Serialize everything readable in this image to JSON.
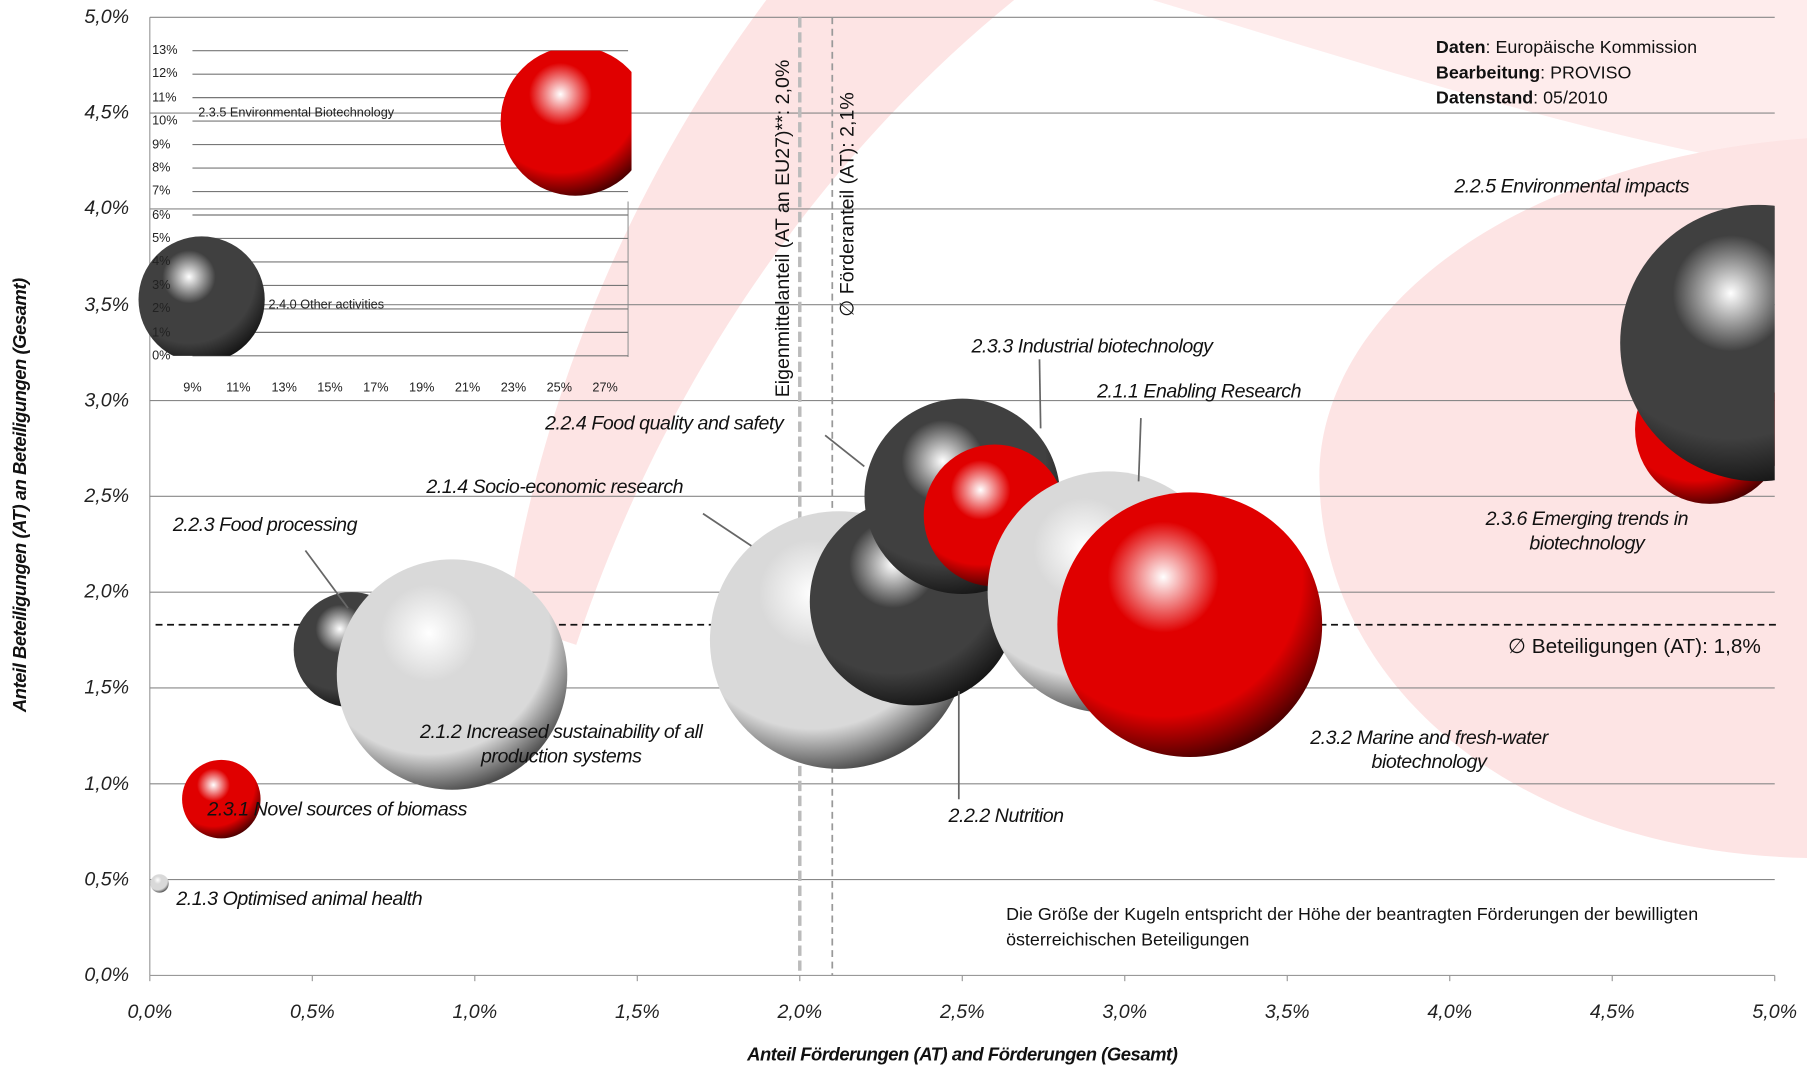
{
  "chart_data": [
    {
      "type": "bubble",
      "x_axis_title": "Anteil Förderungen (AT) and Förderungen (Gesamt)",
      "y_axis_title": "Anteil  Beteiligungen (AT) an Beteiligungen (Gesamt)",
      "xlim": [
        0,
        5
      ],
      "ylim": [
        0,
        5
      ],
      "grid": true,
      "xticks": [
        {
          "value": 0,
          "label": "0,0%"
        },
        {
          "value": 0.5,
          "label": "0,5%"
        },
        {
          "value": 1,
          "label": "1,0%"
        },
        {
          "value": 1.5,
          "label": "1,5%"
        },
        {
          "value": 2,
          "label": "2,0%"
        },
        {
          "value": 2.5,
          "label": "2,5%"
        },
        {
          "value": 3,
          "label": "3,0%"
        },
        {
          "value": 3.5,
          "label": "3,5%"
        },
        {
          "value": 4,
          "label": "4,0%"
        },
        {
          "value": 4.5,
          "label": "4,5%"
        },
        {
          "value": 5,
          "label": "5,0%"
        }
      ],
      "yticks": [
        {
          "value": 0,
          "label": "0,0%"
        },
        {
          "value": 0.5,
          "label": "0,5%"
        },
        {
          "value": 1,
          "label": "1,0%"
        },
        {
          "value": 1.5,
          "label": "1,5%"
        },
        {
          "value": 2,
          "label": "2,0%"
        },
        {
          "value": 2.5,
          "label": "2,5%"
        },
        {
          "value": 3,
          "label": "3,0%"
        },
        {
          "value": 3.5,
          "label": "3,5%"
        },
        {
          "value": 4,
          "label": "4,0%"
        },
        {
          "value": 4.5,
          "label": "4,5%"
        },
        {
          "value": 5,
          "label": "5,0%"
        }
      ],
      "labels": [
        "2.1.3 Optimised animal health",
        "2.3.1 Novel sources of biomass",
        "2.2.3 Food processing",
        "2.1.2 Increased sustainability of all production systems",
        "2.1.4 Socio-economic research",
        "2.2.2 Nutrition",
        "2.2.4 Food quality and safety",
        "2.3.3 Industrial biotechnology",
        "2.1.1 Enabling Research",
        "2.3.2 Marine and fresh-water biotechnology",
        "2.3.6 Emerging trends in biotechnology",
        "2.2.5 Environmental impacts"
      ],
      "x": [
        0.03,
        0.22,
        0.62,
        0.93,
        2.12,
        2.35,
        2.5,
        2.6,
        2.95,
        3.2,
        4.8,
        4.95
      ],
      "values": [
        0.48,
        0.92,
        1.7,
        1.57,
        1.75,
        1.95,
        2.5,
        2.4,
        2.0,
        1.83,
        2.85,
        3.3
      ],
      "sizes": [
        0.64,
        11.6,
        25,
        100,
        125,
        81,
        72,
        38,
        110,
        132,
        42,
        144
      ],
      "colors": [
        "#d9d9d9",
        "#e00000",
        "#404040",
        "#d9d9d9",
        "#d9d9d9",
        "#404040",
        "#404040",
        "#e00000",
        "#d9d9d9",
        "#e00000",
        "#e00000",
        "#404040"
      ],
      "reference_lines": [
        {
          "axis": "x",
          "value": 2.0,
          "label": "Eigenmittelanteil (AT an EU27)**: 2,0%"
        },
        {
          "axis": "x",
          "value": 2.1,
          "label": "∅ Förderanteil (AT): 2,1%"
        },
        {
          "axis": "y",
          "value": 1.83,
          "label": "∅ Beteiligungen (AT): 1,8%"
        }
      ],
      "source": [
        {
          "key": "Daten",
          "text": ": Europäische Kommission"
        },
        {
          "key": "Bearbeitung",
          "text": ": PROVISO"
        },
        {
          "key": "Datenstand",
          "text": ": 05/2010"
        }
      ],
      "note": "Die Größe der Kugeln entspricht der Höhe der beantragten Förderungen der bewilligten österreichischen Beteiligungen"
    },
    {
      "type": "bubble",
      "xlim": [
        9,
        28
      ],
      "ylim": [
        0,
        13
      ],
      "grid": true,
      "xticks": [
        {
          "value": 9,
          "label": "9%"
        },
        {
          "value": 11,
          "label": "11%"
        },
        {
          "value": 13,
          "label": "13%"
        },
        {
          "value": 15,
          "label": "15%"
        },
        {
          "value": 17,
          "label": "17%"
        },
        {
          "value": 19,
          "label": "19%"
        },
        {
          "value": 21,
          "label": "21%"
        },
        {
          "value": 23,
          "label": "23%"
        },
        {
          "value": 25,
          "label": "25%"
        },
        {
          "value": 27,
          "label": "27%"
        }
      ],
      "yticks": [
        {
          "value": 0,
          "label": "0%"
        },
        {
          "value": 1,
          "label": "1%"
        },
        {
          "value": 2,
          "label": "2%"
        },
        {
          "value": 3,
          "label": "3%"
        },
        {
          "value": 4,
          "label": "4%"
        },
        {
          "value": 5,
          "label": "5%"
        },
        {
          "value": 6,
          "label": "6%"
        },
        {
          "value": 7,
          "label": "7%"
        },
        {
          "value": 8,
          "label": "8%"
        },
        {
          "value": 9,
          "label": "9%"
        },
        {
          "value": 10,
          "label": "10%"
        },
        {
          "value": 11,
          "label": "11%"
        },
        {
          "value": 12,
          "label": "12%"
        },
        {
          "value": 13,
          "label": "13%"
        }
      ],
      "labels": [
        "2.3.5 Environmental  Biotechnology",
        "2.4.0 Other activities"
      ],
      "x": [
        25.7,
        9.4
      ],
      "values": [
        10.0,
        2.4
      ],
      "sizes": [
        42,
        30
      ],
      "colors": [
        "#e00000",
        "#404040"
      ]
    }
  ]
}
